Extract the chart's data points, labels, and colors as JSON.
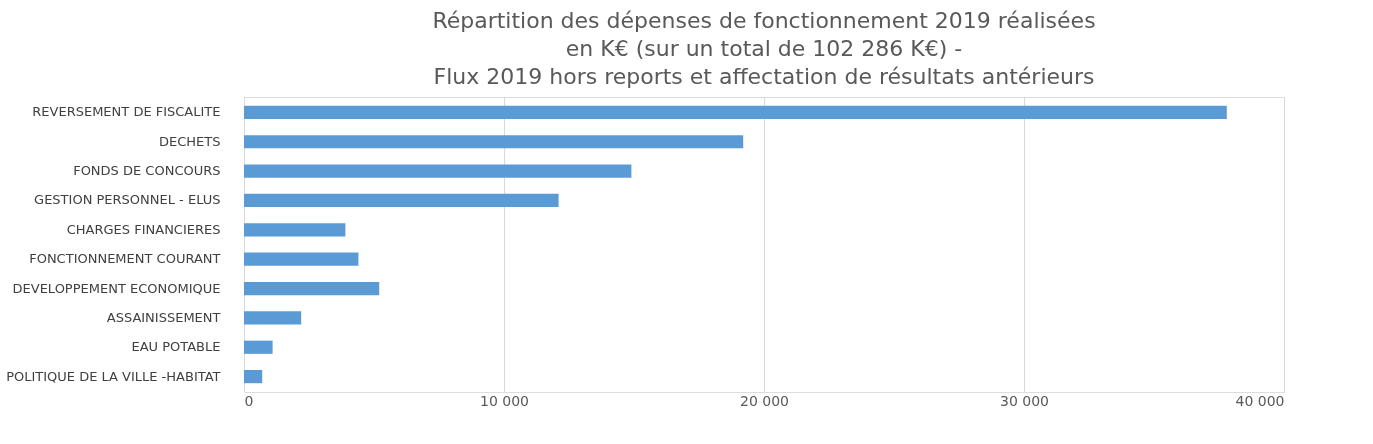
{
  "chart_data": {
    "type": "bar",
    "orientation": "horizontal",
    "title": "Répartition des dépenses de fonctionnement 2019 réalisées\nen K€ (sur un total de 102 286 K€) -\nFlux 2019 hors reports et affectation de résultats antérieurs",
    "categories": [
      "REVERSEMENT DE FISCALITE",
      "DECHETS",
      "FONDS DE CONCOURS",
      "GESTION PERSONNEL - ELUS",
      "CHARGES FINANCIERES",
      "FONCTIONNEMENT COURANT",
      "DEVELOPPEMENT ECONOMIQUE",
      "ASSAINISSEMENT",
      "EAU POTABLE",
      "POLITIQUE DE LA VILLE -HABITAT"
    ],
    "values": [
      37800,
      19200,
      14900,
      12100,
      3900,
      4400,
      5200,
      2200,
      1100,
      700
    ],
    "color": "#5b9bd5",
    "xlim": [
      0,
      40000
    ],
    "xticks": [
      0,
      {
        "value": 10000,
        "label": "10 000"
      },
      {
        "value": 20000,
        "label": "20 000"
      },
      {
        "value": 30000,
        "label": "30 000"
      },
      {
        "value": 40000,
        "label": "40 000"
      }
    ],
    "grid": "x"
  }
}
